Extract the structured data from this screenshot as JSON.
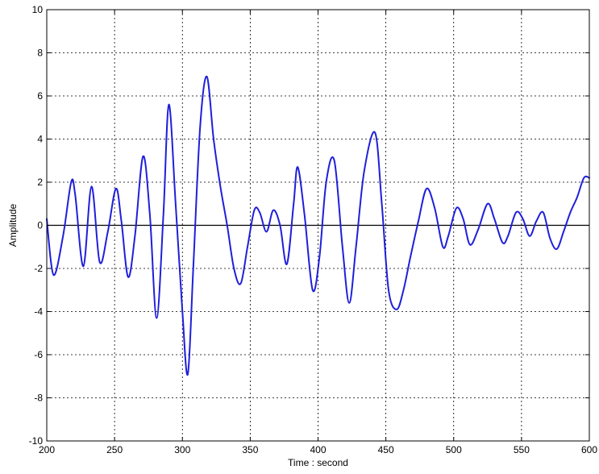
{
  "chart_data": {
    "type": "line",
    "title": "",
    "xlabel": "Time : second",
    "ylabel": "Amplitude",
    "xlim": [
      200,
      600
    ],
    "ylim": [
      -10,
      10
    ],
    "x_ticks": [
      200,
      250,
      300,
      350,
      400,
      450,
      500,
      550,
      600
    ],
    "y_ticks": [
      -10,
      -8,
      -6,
      -4,
      -2,
      0,
      2,
      4,
      6,
      8,
      10
    ],
    "grid": true,
    "zero_line": true,
    "line_color": "#1f1fdc",
    "series": [
      {
        "x": [
          200,
          205,
          212,
          218,
          221,
          227,
          233,
          239,
          245,
          251,
          255,
          260,
          265,
          271,
          276,
          281,
          286,
          290,
          295,
          300,
          304,
          308,
          313,
          318,
          323,
          328,
          333,
          338,
          343,
          348,
          353,
          357,
          362,
          367,
          372,
          377,
          382,
          385,
          390,
          396,
          401,
          406,
          412,
          418,
          423,
          428,
          434,
          442,
          447,
          452,
          458,
          463,
          468,
          474,
          480,
          486,
          492,
          496,
          502,
          507,
          512,
          518,
          525,
          530,
          536,
          540,
          546,
          551,
          556,
          561,
          566,
          571,
          576,
          581,
          586,
          591,
          596,
          600
        ],
        "y": [
          0.3,
          -2.3,
          -0.5,
          2.0,
          1.4,
          -1.9,
          1.8,
          -1.7,
          -0.3,
          1.7,
          0.2,
          -2.4,
          -0.5,
          3.2,
          0.5,
          -4.3,
          0.5,
          5.6,
          1.0,
          -4.0,
          -6.9,
          -2.0,
          4.5,
          6.9,
          4.0,
          1.8,
          0.0,
          -2.0,
          -2.7,
          -1.0,
          0.7,
          0.6,
          -0.3,
          0.7,
          0.0,
          -1.8,
          1.0,
          2.7,
          0.5,
          -3.0,
          -1.5,
          2.0,
          3.0,
          -1.0,
          -3.6,
          -1.0,
          2.5,
          4.3,
          1.0,
          -3.0,
          -3.9,
          -3.0,
          -1.5,
          0.2,
          1.7,
          0.8,
          -1.0,
          -0.5,
          0.8,
          0.3,
          -0.9,
          -0.2,
          1.0,
          0.3,
          -0.8,
          -0.5,
          0.6,
          0.3,
          -0.5,
          0.2,
          0.6,
          -0.6,
          -1.1,
          -0.3,
          0.6,
          1.3,
          2.2,
          2.2
        ]
      }
    ]
  }
}
